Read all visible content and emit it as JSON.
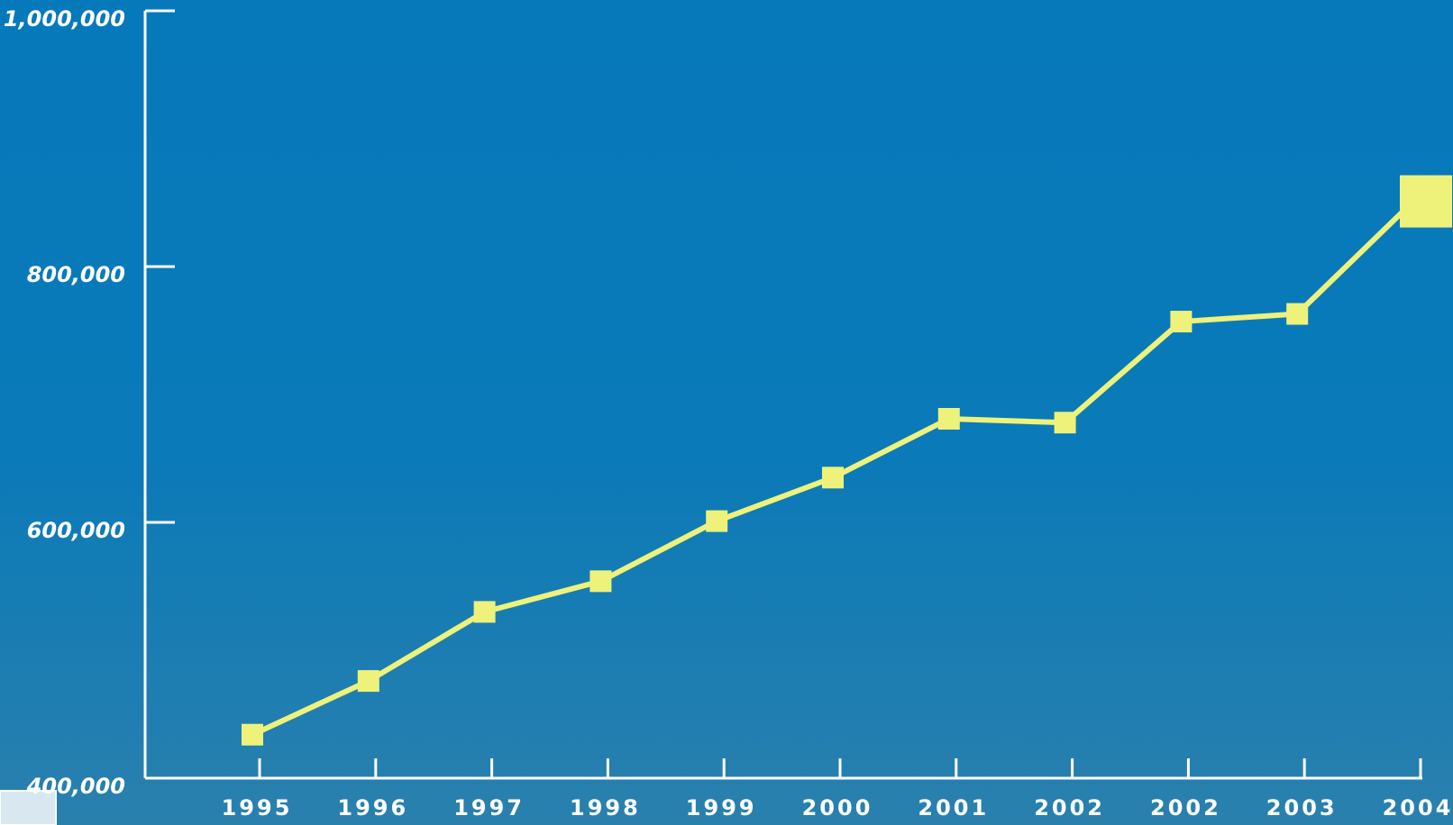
{
  "chart_data": {
    "type": "line",
    "categories": [
      "1995",
      "1996",
      "1997",
      "1998",
      "1999",
      "2000",
      "2001",
      "2002",
      "2002",
      "2003",
      "2004"
    ],
    "values": [
      434000,
      476000,
      530000,
      554000,
      601000,
      635000,
      681000,
      678000,
      757000,
      763000,
      851000
    ],
    "color": "#eef27a",
    "ylim": [
      400000,
      1000000
    ],
    "yticks": [
      {
        "value": 400000,
        "label": "400,000"
      },
      {
        "value": 600000,
        "label": "600,000"
      },
      {
        "value": 800000,
        "label": "800,000"
      },
      {
        "value": 1000000,
        "label": "1,000,000"
      }
    ]
  }
}
